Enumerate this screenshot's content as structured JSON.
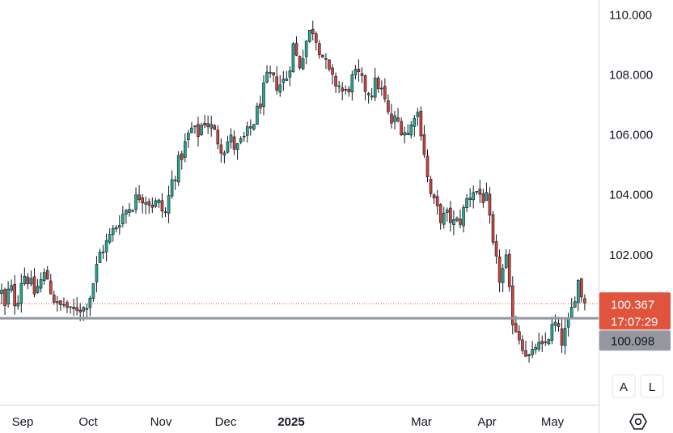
{
  "chart_data": {
    "type": "candlestick",
    "price_axis": {
      "ticks": [
        "110.000",
        "108.000",
        "106.000",
        "104.000",
        "102.000"
      ],
      "tick_values": [
        110,
        108,
        106,
        104,
        102
      ],
      "range": [
        97.0,
        110.5
      ]
    },
    "time_axis": {
      "labels": [
        {
          "text": "Sep",
          "bold": false
        },
        {
          "text": "Oct",
          "bold": false
        },
        {
          "text": "Nov",
          "bold": false
        },
        {
          "text": "Dec",
          "bold": false
        },
        {
          "text": "2025",
          "bold": true
        },
        {
          "text": "Mar",
          "bold": false
        },
        {
          "text": "Apr",
          "bold": false
        },
        {
          "text": "May",
          "bold": false
        }
      ]
    },
    "last_price": {
      "value": 100.367,
      "label": "100.367",
      "countdown": "17:07:29",
      "color": "#e0533c"
    },
    "horizontal_line": {
      "value": 100.098,
      "label": "100.098",
      "color": "#9598a1"
    },
    "colors": {
      "up": "#22ab94",
      "down": "#d0443a",
      "wick": "#131722"
    },
    "close_path": [
      [
        0,
        101.0
      ],
      [
        6,
        100.2
      ],
      [
        12,
        101.0
      ],
      [
        20,
        100.3
      ],
      [
        28,
        101.4
      ],
      [
        35,
        101.2
      ],
      [
        42,
        100.7
      ],
      [
        50,
        101.1
      ],
      [
        57,
        101.4
      ],
      [
        64,
        100.7
      ],
      [
        72,
        100.2
      ],
      [
        80,
        100.4
      ],
      [
        88,
        100.0
      ],
      [
        96,
        100.3
      ],
      [
        104,
        100.2
      ],
      [
        112,
        100.7
      ],
      [
        118,
        101.4
      ],
      [
        124,
        102.1
      ],
      [
        132,
        102.4
      ],
      [
        140,
        102.8
      ],
      [
        148,
        103.2
      ],
      [
        156,
        103.5
      ],
      [
        164,
        103.7
      ],
      [
        172,
        104.0
      ],
      [
        180,
        103.9
      ],
      [
        188,
        103.7
      ],
      [
        196,
        103.7
      ],
      [
        204,
        103.3
      ],
      [
        212,
        104.4
      ],
      [
        220,
        105.0
      ],
      [
        228,
        105.6
      ],
      [
        236,
        106.2
      ],
      [
        244,
        106.0
      ],
      [
        252,
        106.5
      ],
      [
        260,
        106.3
      ],
      [
        268,
        105.9
      ],
      [
        276,
        105.5
      ],
      [
        284,
        105.9
      ],
      [
        292,
        105.5
      ],
      [
        300,
        105.8
      ],
      [
        308,
        106.1
      ],
      [
        316,
        106.6
      ],
      [
        324,
        107.3
      ],
      [
        332,
        108.0
      ],
      [
        340,
        107.7
      ],
      [
        348,
        107.7
      ],
      [
        356,
        108.0
      ],
      [
        362,
        109.0
      ],
      [
        370,
        108.3
      ],
      [
        378,
        109.1
      ],
      [
        386,
        109.6
      ],
      [
        394,
        109.0
      ],
      [
        402,
        108.4
      ],
      [
        410,
        107.8
      ],
      [
        418,
        107.7
      ],
      [
        426,
        107.3
      ],
      [
        434,
        107.8
      ],
      [
        442,
        108.0
      ],
      [
        450,
        107.6
      ],
      [
        458,
        107.4
      ],
      [
        466,
        107.8
      ],
      [
        474,
        107.3
      ],
      [
        482,
        106.4
      ],
      [
        490,
        106.5
      ],
      [
        498,
        106.2
      ],
      [
        506,
        106.0
      ],
      [
        514,
        107.0
      ],
      [
        522,
        106.0
      ],
      [
        530,
        104.2
      ],
      [
        538,
        103.6
      ],
      [
        546,
        103.2
      ],
      [
        554,
        103.3
      ],
      [
        562,
        103.0
      ],
      [
        570,
        103.2
      ],
      [
        578,
        103.9
      ],
      [
        586,
        104.2
      ],
      [
        594,
        104.0
      ],
      [
        602,
        103.8
      ],
      [
        610,
        102.1
      ],
      [
        618,
        101.2
      ],
      [
        626,
        101.8
      ],
      [
        632,
        100.0
      ],
      [
        640,
        99.4
      ],
      [
        648,
        98.9
      ],
      [
        656,
        98.4
      ],
      [
        662,
        99.0
      ],
      [
        670,
        98.8
      ],
      [
        678,
        99.3
      ],
      [
        686,
        99.7
      ],
      [
        694,
        99.1
      ],
      [
        702,
        99.6
      ],
      [
        708,
        100.3
      ],
      [
        714,
        101.2
      ],
      [
        720,
        100.6
      ],
      [
        724,
        100.4
      ]
    ]
  },
  "buttons": {
    "auto": "A",
    "log": "L",
    "settings_icon": "gear-icon"
  }
}
